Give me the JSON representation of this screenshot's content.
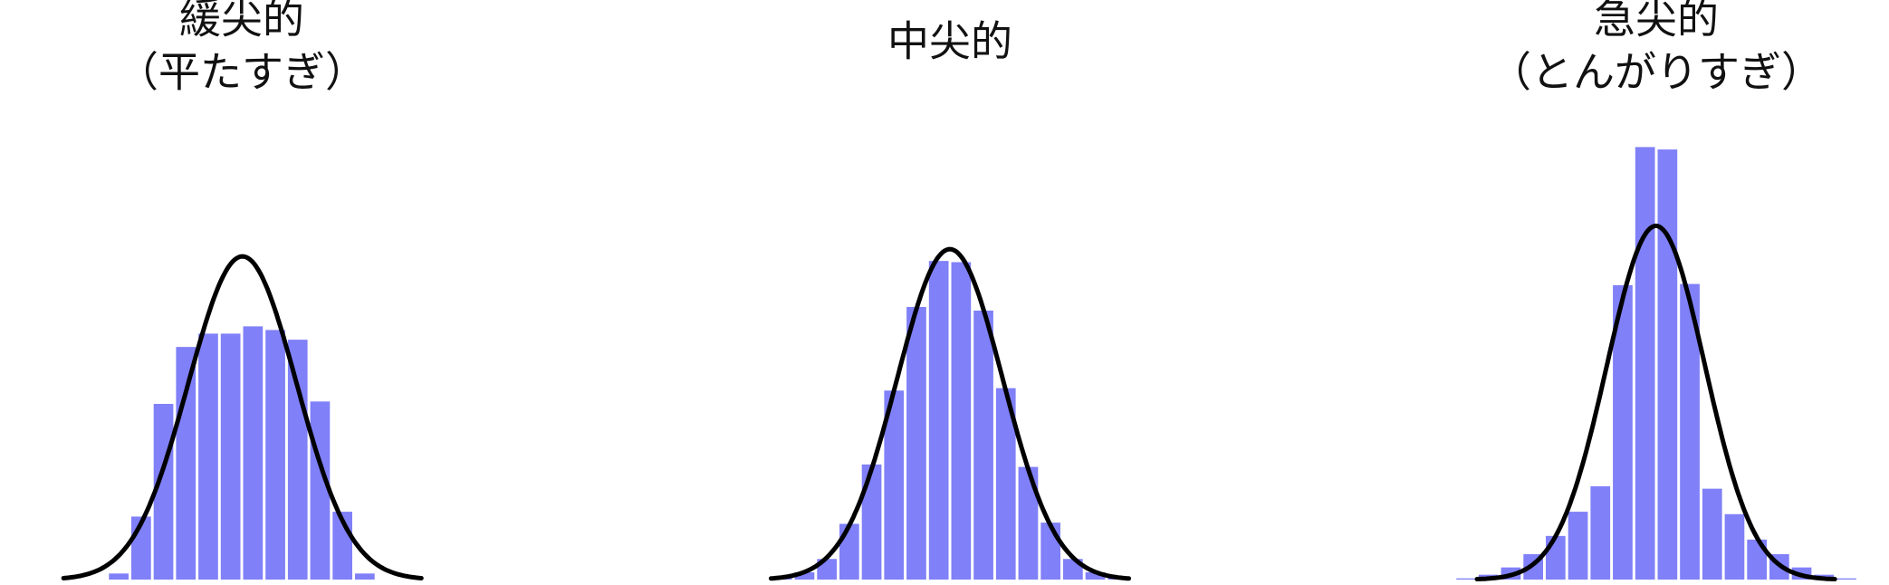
{
  "chart_data": [
    {
      "type": "histogram",
      "title": [
        "緩尖的",
        "（平たすぎ）"
      ],
      "color": "#8080f8",
      "ylim": [
        0,
        370
      ],
      "values": [
        5,
        52,
        145,
        192,
        203,
        203,
        209,
        206,
        198,
        147,
        56,
        5
      ]
    },
    {
      "type": "histogram",
      "title": [
        "中尖的"
      ],
      "color": "#8080f8",
      "ylim": [
        0,
        370
      ],
      "values": [
        2,
        6,
        17,
        46,
        95,
        156,
        225,
        263,
        262,
        222,
        158,
        93,
        47,
        17,
        6,
        2
      ]
    },
    {
      "type": "histogram",
      "title": [
        "急尖的",
        "（とんがりすぎ）"
      ],
      "color": "#8080f8",
      "ylim": [
        0,
        370
      ],
      "values": [
        1,
        4,
        10,
        21,
        36,
        56,
        77,
        243,
        357,
        355,
        244,
        75,
        54,
        33,
        21,
        10,
        4,
        1
      ]
    }
  ]
}
